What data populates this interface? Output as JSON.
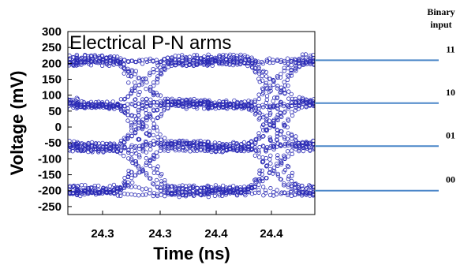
{
  "chart_data": {
    "type": "scatter",
    "title": "Electrical P-N arms",
    "xlabel": "Time (ns)",
    "ylabel": "Voltage (mV)",
    "ylim": [
      -275,
      300
    ],
    "yticks": [
      300,
      250,
      200,
      150,
      100,
      50,
      0,
      -50,
      -100,
      -150,
      -200,
      -250
    ],
    "xtick_labels": [
      "24.3",
      "24.3",
      "24.4",
      "24.4"
    ],
    "marker": "open-circle",
    "marker_color": "#2b2bb5",
    "grid": false,
    "eye_levels_mV": [
      210,
      75,
      -60,
      -200
    ],
    "binary_input": {
      "header_line1": "Binary",
      "header_line2": "input",
      "levels": [
        {
          "code": "11",
          "voltage": 210
        },
        {
          "code": "10",
          "voltage": 75
        },
        {
          "code": "01",
          "voltage": -60
        },
        {
          "code": "00",
          "voltage": -200
        }
      ],
      "line_color": "#4a86c8"
    }
  }
}
